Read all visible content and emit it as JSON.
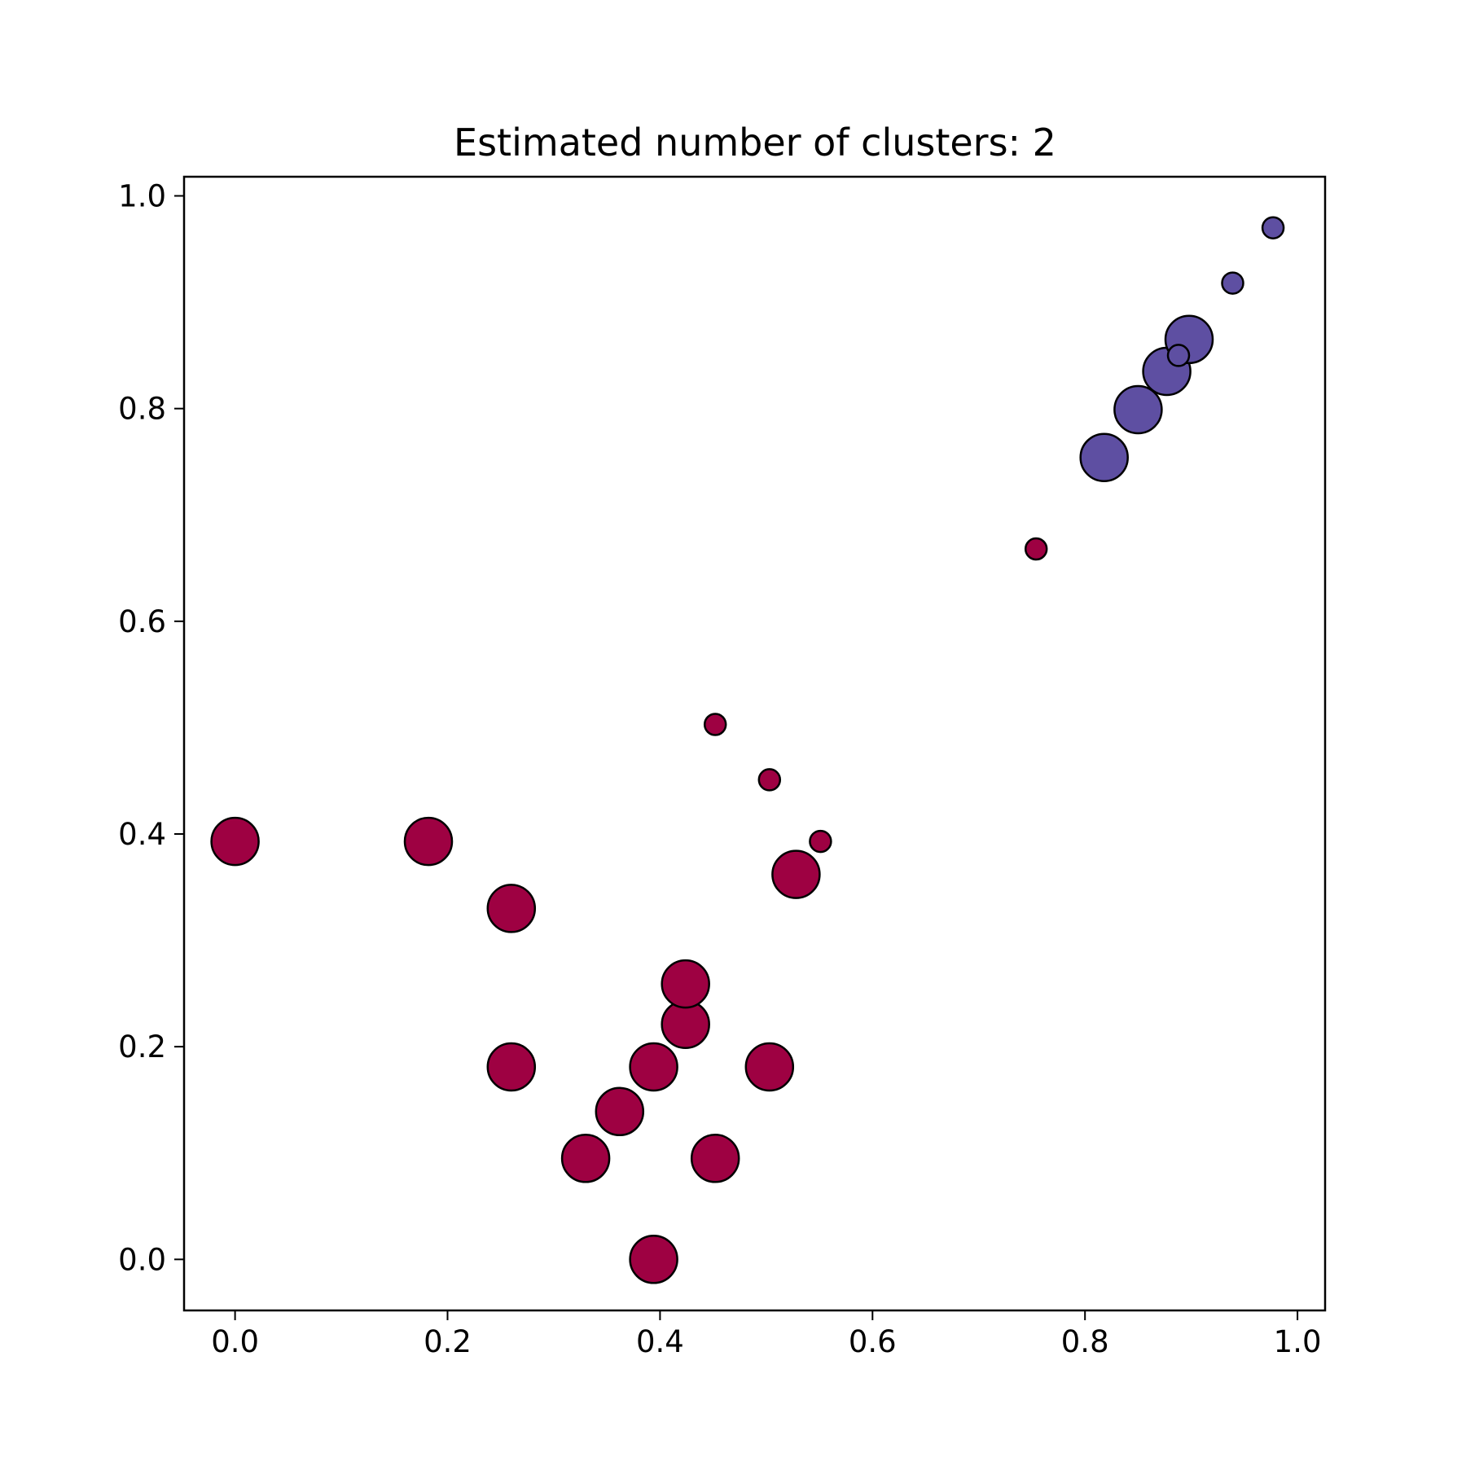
{
  "chart_data": {
    "type": "scatter",
    "title": "Estimated number of clusters: 2",
    "xlabel": "",
    "ylabel": "",
    "xlim": [
      -0.048,
      1.026
    ],
    "ylim": [
      -0.048,
      1.018
    ],
    "xticks": [
      0.0,
      0.2,
      0.4,
      0.6,
      0.8,
      1.0
    ],
    "yticks": [
      0.0,
      0.2,
      0.4,
      0.6,
      0.8,
      1.0
    ],
    "xtick_labels": [
      "0.0",
      "0.2",
      "0.4",
      "0.6",
      "0.8",
      "1.0"
    ],
    "ytick_labels": [
      "0.0",
      "0.2",
      "0.4",
      "0.6",
      "0.8",
      "1.0"
    ],
    "grid": false,
    "legend": "none",
    "marker_sizes": {
      "core": "large",
      "non_core": "small"
    },
    "series": [
      {
        "cluster": 0,
        "color": "#9e0142",
        "points": [
          {
            "x": 0.0,
            "y": 0.393,
            "core": true
          },
          {
            "x": 0.182,
            "y": 0.393,
            "core": true
          },
          {
            "x": 0.26,
            "y": 0.33,
            "core": true
          },
          {
            "x": 0.26,
            "y": 0.181,
            "core": true
          },
          {
            "x": 0.33,
            "y": 0.095,
            "core": true
          },
          {
            "x": 0.362,
            "y": 0.139,
            "core": true
          },
          {
            "x": 0.394,
            "y": 0.181,
            "core": true
          },
          {
            "x": 0.394,
            "y": 0.0,
            "core": true
          },
          {
            "x": 0.424,
            "y": 0.221,
            "core": true
          },
          {
            "x": 0.424,
            "y": 0.259,
            "core": true
          },
          {
            "x": 0.452,
            "y": 0.095,
            "core": true
          },
          {
            "x": 0.503,
            "y": 0.181,
            "core": true
          },
          {
            "x": 0.528,
            "y": 0.362,
            "core": true
          },
          {
            "x": 0.452,
            "y": 0.503,
            "core": false
          },
          {
            "x": 0.503,
            "y": 0.451,
            "core": false
          },
          {
            "x": 0.551,
            "y": 0.393,
            "core": false
          },
          {
            "x": 0.754,
            "y": 0.668,
            "core": false
          }
        ]
      },
      {
        "cluster": 1,
        "color": "#5e4fa2",
        "points": [
          {
            "x": 0.818,
            "y": 0.754,
            "core": true
          },
          {
            "x": 0.85,
            "y": 0.799,
            "core": true
          },
          {
            "x": 0.877,
            "y": 0.835,
            "core": true
          },
          {
            "x": 0.898,
            "y": 0.865,
            "core": true
          },
          {
            "x": 0.888,
            "y": 0.85,
            "core": false
          },
          {
            "x": 0.939,
            "y": 0.918,
            "core": false
          },
          {
            "x": 0.977,
            "y": 0.97,
            "core": false
          }
        ]
      }
    ]
  }
}
